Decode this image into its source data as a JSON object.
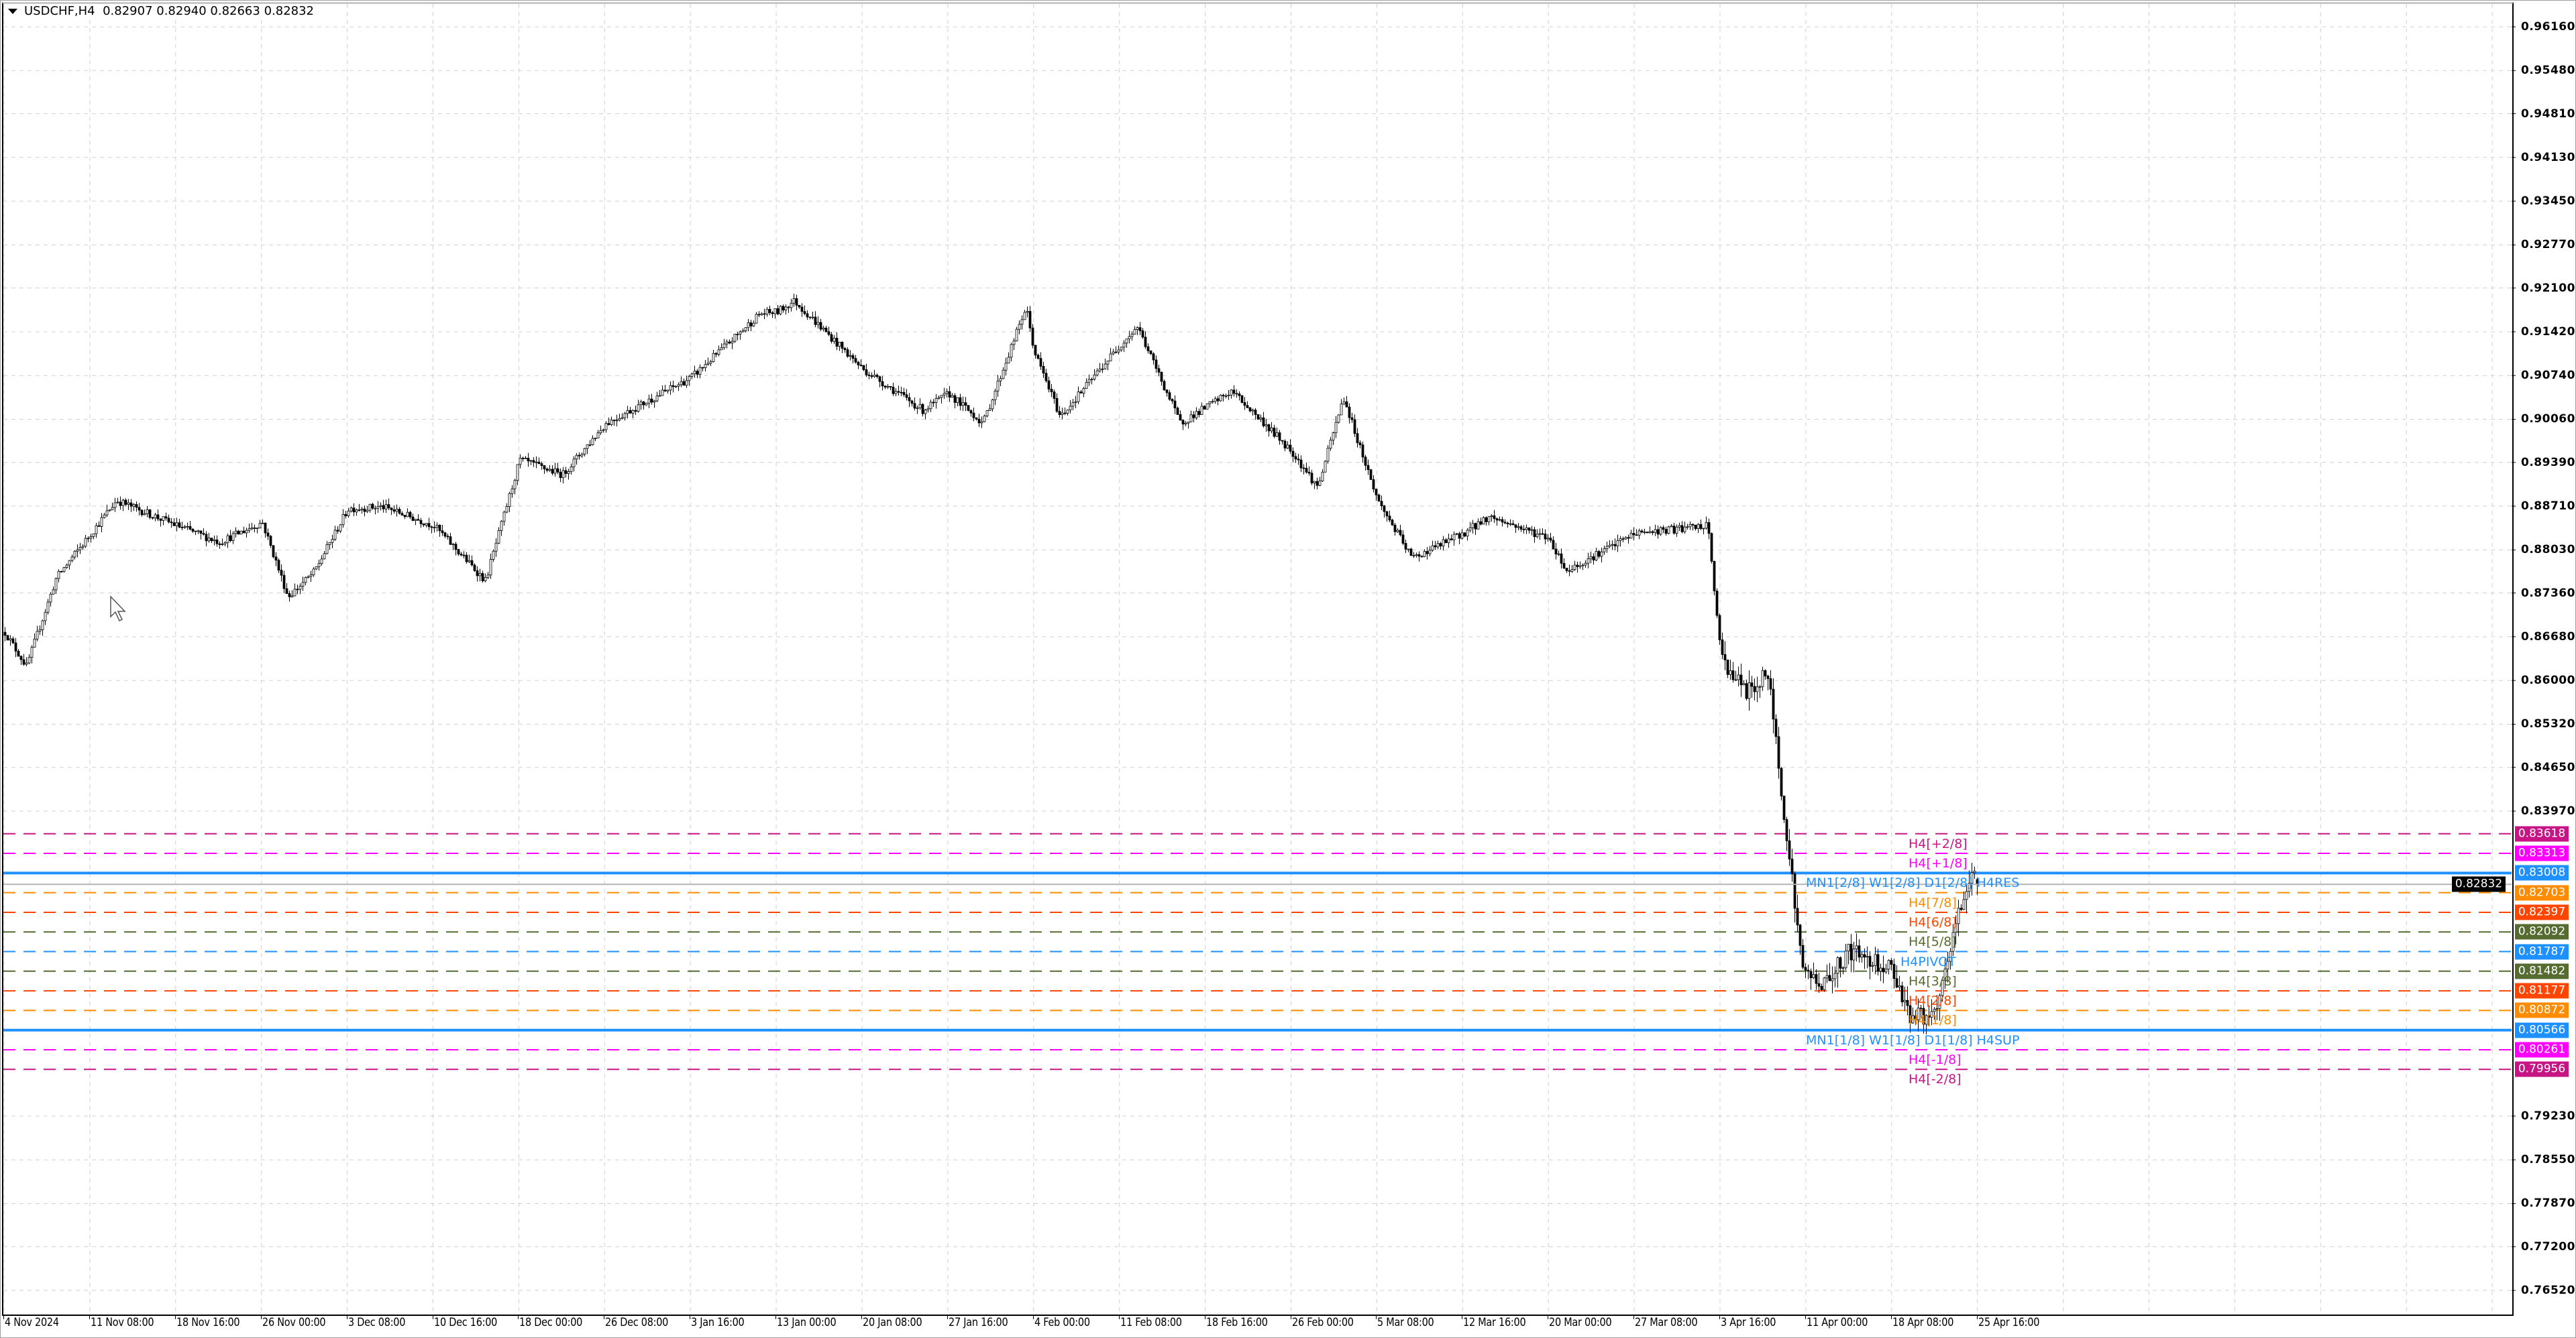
{
  "header": {
    "symbol_timeframe": "USDCHF,H4",
    "ohlc": "0.82907 0.82940 0.82663 0.82832"
  },
  "chart_data": {
    "type": "candlestick",
    "symbol": "USDCHF",
    "timeframe": "H4",
    "last_bar": {
      "open": 0.82907,
      "high": 0.8294,
      "low": 0.82663,
      "close": 0.82832
    },
    "current_price": "0.82832",
    "ylim": [
      0.7652,
      0.9616
    ],
    "y_ticks": [
      "0.96160",
      "0.95480",
      "0.94810",
      "0.94130",
      "0.93450",
      "0.92770",
      "0.92100",
      "0.91420",
      "0.90740",
      "0.90060",
      "0.89390",
      "0.88710",
      "0.88030",
      "0.87360",
      "0.86680",
      "0.86000",
      "0.85320",
      "0.84650",
      "0.83970",
      "0.79230",
      "0.78550",
      "0.77870",
      "0.77200",
      "0.76520"
    ],
    "x_ticks": [
      "4 Nov 2024",
      "11 Nov 08:00",
      "18 Nov 16:00",
      "26 Nov 00:00",
      "3 Dec 08:00",
      "10 Dec 16:00",
      "18 Dec 00:00",
      "26 Dec 08:00",
      "3 Jan 16:00",
      "13 Jan 00:00",
      "20 Jan 08:00",
      "27 Jan 16:00",
      "4 Feb 00:00",
      "11 Feb 08:00",
      "18 Feb 16:00",
      "26 Feb 00:00",
      "5 Mar 08:00",
      "12 Mar 16:00",
      "20 Mar 00:00",
      "27 Mar 08:00",
      "3 Apr 16:00",
      "11 Apr 00:00",
      "18 Apr 08:00",
      "25 Apr 16:00"
    ],
    "approx_close_at_x_ticks": [
      0.8675,
      0.8828,
      0.8841,
      0.8846,
      0.8867,
      0.8841,
      0.8943,
      0.8999,
      0.9071,
      0.9173,
      0.9084,
      0.9046,
      0.911,
      0.9122,
      0.9025,
      0.8956,
      0.888,
      0.8829,
      0.8821,
      0.8829,
      0.8637,
      0.8127,
      0.8152,
      0.8283
    ],
    "grid": true,
    "levels": [
      {
        "price": "0.83618",
        "label": "H4[+2/8]",
        "color": "#c71585",
        "style": "dashed"
      },
      {
        "price": "0.83313",
        "label": "H4[+1/8]",
        "color": "#ff00ff",
        "style": "dashed"
      },
      {
        "price": "0.83008",
        "label": "MN1[2/8] W1[2/8] D1[2/8] H4RES",
        "color": "#1e90ff",
        "style": "solid"
      },
      {
        "price": "0.82703",
        "label": "H4[7/8]",
        "color": "#ff8c00",
        "style": "dashed"
      },
      {
        "price": "0.82397",
        "label": "H4[6/8]",
        "color": "#ff4500",
        "style": "dashed"
      },
      {
        "price": "0.82092",
        "label": "H4[5/8]",
        "color": "#556b2f",
        "style": "dashed"
      },
      {
        "price": "0.81787",
        "label": "H4PIVOT",
        "color": "#1e90ff",
        "style": "dashed"
      },
      {
        "price": "0.81482",
        "label": "H4[3/8]",
        "color": "#556b2f",
        "style": "dashed"
      },
      {
        "price": "0.81177",
        "label": "H4[2/8]",
        "color": "#ff4500",
        "style": "dashed"
      },
      {
        "price": "0.80872",
        "label": "H4[1/8]",
        "color": "#ff8c00",
        "style": "dashed"
      },
      {
        "price": "0.80566",
        "label": "MN1[1/8] W1[1/8] D1[1/8] H4SUP",
        "color": "#1e90ff",
        "style": "solid"
      },
      {
        "price": "0.80261",
        "label": "H4[-1/8]",
        "color": "#ff00ff",
        "style": "dashed"
      },
      {
        "price": "0.79956",
        "label": "H4[-2/8]",
        "color": "#c71585",
        "style": "dashed"
      }
    ]
  }
}
